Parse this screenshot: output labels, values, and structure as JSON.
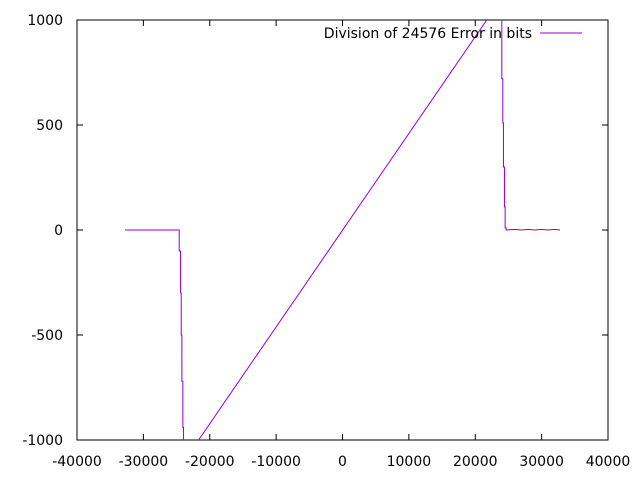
{
  "chart_data": {
    "type": "line",
    "title": "",
    "xlabel": "",
    "ylabel": "",
    "xlim": [
      -40000,
      40000
    ],
    "ylim": [
      -1000,
      1000
    ],
    "x_ticks": [
      -40000,
      -30000,
      -20000,
      -10000,
      0,
      10000,
      20000,
      30000,
      40000
    ],
    "x_tick_labels": [
      "-40000",
      "-30000",
      "-20000",
      "-10000",
      "0",
      "10000",
      "20000",
      "30000",
      "40000"
    ],
    "y_ticks": [
      -1000,
      -500,
      0,
      500,
      1000
    ],
    "y_tick_labels": [
      "-1000",
      "-500",
      "0",
      "500",
      "1000"
    ],
    "grid": false,
    "legend_position": "top-right",
    "series": [
      {
        "name": "Division of 24576 Error in bits",
        "color": "#9400d3",
        "x": [
          -32768,
          -24600,
          -24600,
          -24400,
          -24400,
          -24300,
          -24300,
          -24200,
          -24200,
          -24050,
          -24050,
          -23950,
          -23950,
          -23850,
          23900,
          23900,
          24000,
          24000,
          24150,
          24150,
          24250,
          24250,
          24400,
          24400,
          24500,
          24500,
          24650,
          24650,
          26000,
          27000,
          28000,
          29000,
          30000,
          31000,
          32000,
          32767
        ],
        "y": [
          0,
          0,
          -100,
          -100,
          -300,
          -300,
          -500,
          -500,
          -720,
          -720,
          -940,
          -940,
          -1000,
          -1100,
          1100,
          1000,
          1000,
          720,
          720,
          510,
          510,
          300,
          300,
          110,
          110,
          10,
          10,
          0,
          3,
          0,
          3,
          0,
          3,
          0,
          3,
          0
        ]
      }
    ]
  }
}
